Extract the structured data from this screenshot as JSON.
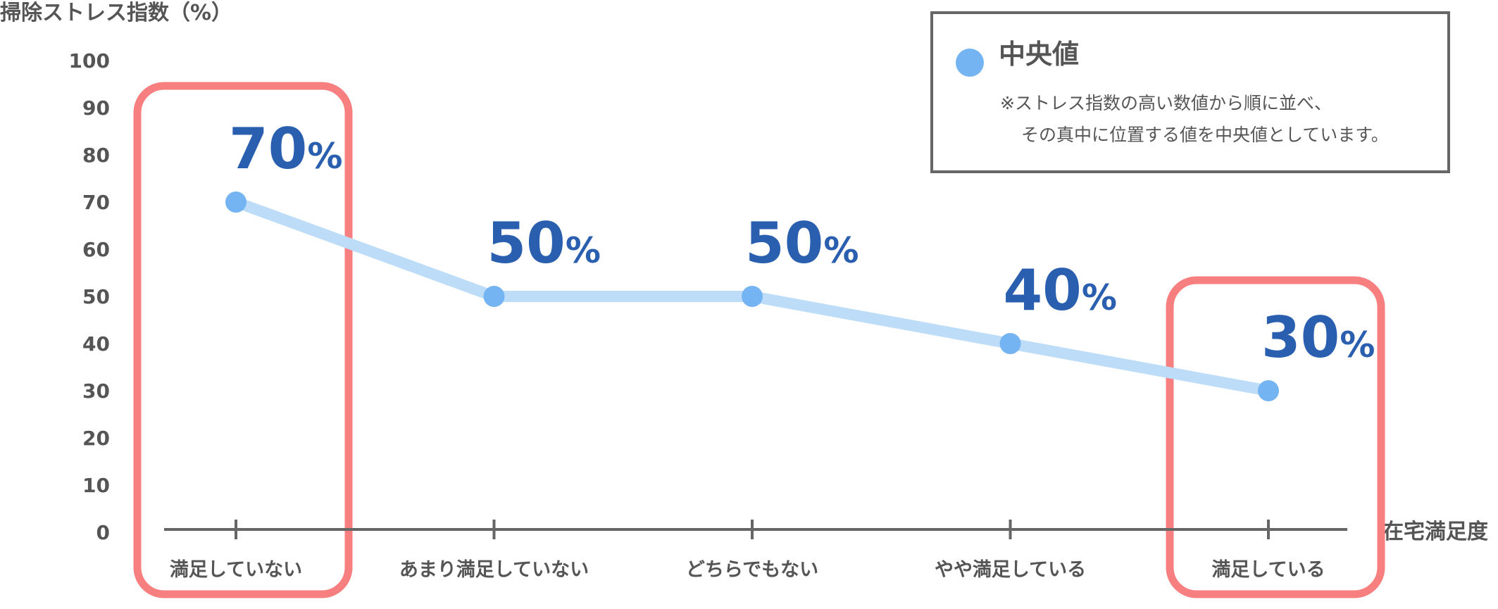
{
  "chart_data": {
    "type": "line",
    "title": "",
    "ylabel": "掃除ストレス指数（%）",
    "xlabel": "在宅満足度",
    "ylim": [
      0,
      100
    ],
    "yticks": [
      0,
      10,
      20,
      30,
      40,
      50,
      60,
      70,
      80,
      90,
      100
    ],
    "categories": [
      "満足していない",
      "あまり満足していない",
      "どちらでもない",
      "やや満足している",
      "満足している"
    ],
    "series": [
      {
        "name": "中央値",
        "values": [
          70,
          50,
          50,
          40,
          30
        ]
      }
    ],
    "value_suffix": "%",
    "highlighted_categories": [
      0,
      4
    ],
    "grid": false,
    "legend": {
      "position": "top-right",
      "label": "中央値",
      "note_line1": "※ストレス指数の高い数値から順に並べ、",
      "note_line2": "その真中に位置する値を中央値としています。"
    },
    "colors": {
      "line": "#bcdcf8",
      "marker": "#74b4f2",
      "value_text": "#2a5fb0",
      "highlight": "#f77f7f",
      "axis": "#666666",
      "text": "#555555",
      "legend_border": "#666666"
    }
  }
}
